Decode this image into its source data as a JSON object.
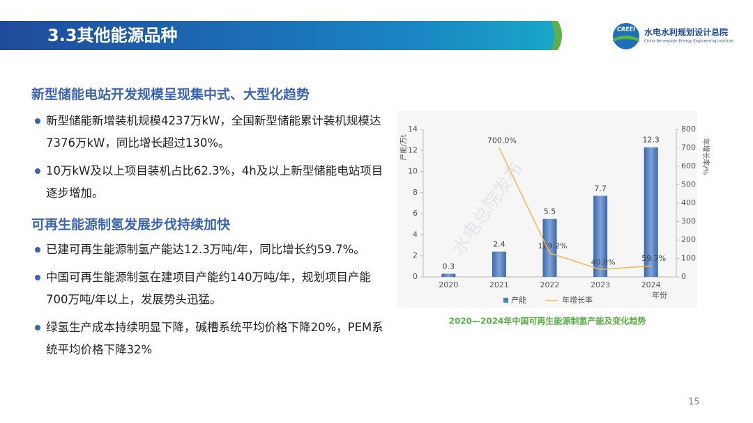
{
  "header": {
    "title": "3.3其他能源品种",
    "logo_mark": "CREEI",
    "org_name": "水电水利规划设计总院",
    "org_name_en": "China Renewable Energy Engineering Institute"
  },
  "sections": [
    {
      "heading": "新型储能电站开发规模呈现集中式、大型化趋势",
      "bullets": [
        "新型储能新增装机规模4237万kW，全国新型储能累计装机规模达7376万kW，同比增长超过130%。",
        "10万kW及以上项目装机占比62.3%，4h及以上新型储能电站项目逐步增加。"
      ]
    },
    {
      "heading": "可再生能源制氢发展步伐持续加快",
      "bullets": [
        "已建可再生能源制氢产能达12.3万吨/年，同比增长约59.7%。",
        "中国可再生能源制氢在建项目产能约140万吨/年，规划项目产能700万吨/年以上，发展势头迅猛。",
        "绿氢生产成本持续明显下降，碱槽系统平均价格下降20%，PEM系统平均价格下降32%"
      ]
    }
  ],
  "chart_data": {
    "type": "bar-line",
    "caption": "2020—2024年中国可再生能源制氢产能及变化趋势",
    "watermark": "水电总院发布",
    "x_label": "年份",
    "y_label": "产能/万t",
    "y2_label": "年增长率/%",
    "categories": [
      "2020",
      "2021",
      "2022",
      "2023",
      "2024"
    ],
    "series": [
      {
        "name": "产能",
        "type": "bar",
        "color": "#4f7ec0",
        "values": [
          0.3,
          2.4,
          5.5,
          7.7,
          12.3
        ]
      },
      {
        "name": "年增长率",
        "type": "line",
        "axis": "y2",
        "color": "#f2b84b",
        "values": [
          null,
          700.0,
          129.2,
          40.0,
          59.7
        ],
        "value_labels": [
          null,
          "700.0%",
          "129.2%",
          "40.0%",
          "59.7%"
        ]
      }
    ],
    "ylim": [
      0,
      14
    ],
    "yticks": [
      0,
      2,
      4,
      6,
      8,
      10,
      12,
      14
    ],
    "y2lim": [
      0,
      800
    ],
    "y2ticks": [
      0,
      100,
      200,
      300,
      400,
      500,
      600,
      700,
      800
    ]
  },
  "page_number": "15"
}
